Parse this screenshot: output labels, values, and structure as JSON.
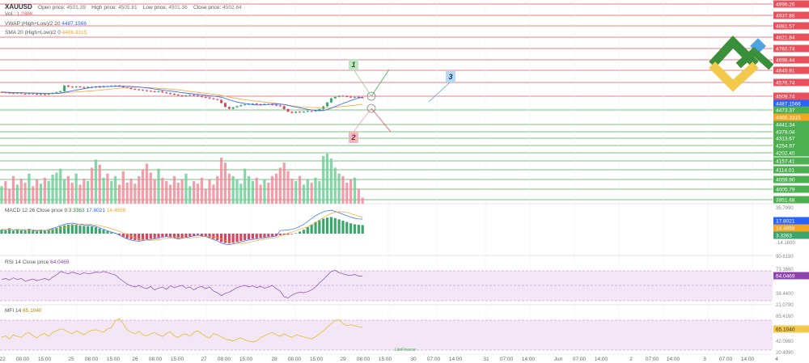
{
  "header": {
    "symbol": "XAUUSD",
    "open_label": "Open price:",
    "open_value": "4501.39",
    "high_label": "High price:",
    "high_value": "4505.81",
    "low_label": "Low price:",
    "low_value": "4501.36",
    "close_label": "Close price:",
    "close_value": "4502.84",
    "vol_label": "Vol.:",
    "vol_value": "1.288K"
  },
  "indicators": {
    "vwap_label": "VWAP (High+Low)/2 20",
    "vwap_value": "4487.1566",
    "sma_label": "SMA 20 (High+Low)/2 0",
    "sma_value": "4466.3315",
    "macd_label": "MACD 12 26 Close price 9",
    "macd_v1": "3.3363",
    "macd_v2": "17.8021",
    "macd_v3": "14.4658",
    "rsi_label": "RSI 14 Close price",
    "rsi_value": "64.0469",
    "mfi_label": "MFI 14",
    "mfi_value": "65.1040"
  },
  "annotations": {
    "label_1": "1",
    "label_2": "2",
    "label_3": "3"
  },
  "watermark": "LiteFinance",
  "colors": {
    "up": "#6fcf97",
    "down": "#f28b9b",
    "resistance": "#e8505b",
    "support": "#4caf50",
    "vwap": "#2962ff",
    "sma": "#f5a623",
    "rsi": "#8e44ad",
    "mfi": "#e6b800",
    "logo_green": "#3a8f3a",
    "logo_yellow": "#f2c94c",
    "logo_blue": "#4fa3e0"
  },
  "chart_data": {
    "type": "candlestick",
    "price_scale_ticks": [
      "4996.26",
      "4937.88",
      "4881.57",
      "4821.84",
      "4760.74",
      "4698.44",
      "4645.91",
      "4576.74",
      "4509.74",
      "4487.1566",
      "4473.37",
      "4466.3315",
      "4441.34",
      "4378.04",
      "4313.67",
      "4254.97",
      "4202.40",
      "4157.41",
      "4114.01",
      "4059.90",
      "4005.79",
      "3951.68"
    ],
    "resistance_levels": [
      4996.26,
      4937.88,
      4881.57,
      4821.84,
      4760.74,
      4698.44,
      4645.91,
      4576.74,
      4509.74
    ],
    "support_levels": [
      4473.37,
      4441.34,
      4378.04,
      4313.67,
      4254.97,
      4202.4,
      4157.41,
      4114.01,
      4059.9,
      4005.79,
      3951.68
    ],
    "current_price": 4502.84,
    "vwap_last": 4487.1566,
    "sma_last": 4466.3315,
    "time_labels": [
      "22",
      "08:00",
      "15:00",
      "25",
      "08:00",
      "15:00",
      "26",
      "08:00",
      "15:00",
      "27",
      "08:00",
      "15:00",
      "28",
      "08:00",
      "15:00",
      "29",
      "08:00",
      "15:00",
      "30",
      "07:00",
      "14:00",
      "31",
      "07:00",
      "14:00",
      "Jun",
      "07:00",
      "14:00",
      "2",
      "07:00",
      "14:00",
      "3",
      "07:00",
      "14:00",
      "4"
    ],
    "macd_scale": [
      "35.7990",
      "17.8021",
      "14.4658",
      "3.3363",
      "-14.1600"
    ],
    "rsi_scale": [
      "90.6190",
      "73.1660",
      "64.0469",
      "38.4400",
      "21.0790"
    ],
    "mfi_scale": [
      "85.4160",
      "65.1040",
      "42.0980",
      "20.4990"
    ],
    "closes": [
      4530,
      4528,
      4526,
      4524,
      4527,
      4523,
      4520,
      4525,
      4522,
      4519,
      4521,
      4518,
      4522,
      4527,
      4531,
      4536,
      4566,
      4560,
      4557,
      4561,
      4558,
      4555,
      4559,
      4556,
      4560,
      4557,
      4563,
      4561,
      4565,
      4566,
      4562,
      4557,
      4553,
      4548,
      4546,
      4543,
      4541,
      4538,
      4536,
      4533,
      4536,
      4530,
      4526,
      4522,
      4518,
      4514,
      4510,
      4514,
      4517,
      4514,
      4510,
      4506,
      4503,
      4498,
      4494,
      4490,
      4473,
      4452,
      4442,
      4450,
      4456,
      4462,
      4466,
      4468,
      4470,
      4467,
      4465,
      4468,
      4466,
      4463,
      4460,
      4456,
      4440,
      4426,
      4420,
      4426,
      4424,
      4426,
      4430,
      4428,
      4432,
      4440,
      4455,
      4476,
      4498,
      4506,
      4512,
      4510,
      4507,
      4504,
      4506,
      4503,
      4502.84
    ],
    "volumes": [
      35,
      45,
      30,
      55,
      38,
      50,
      42,
      60,
      35,
      48,
      40,
      52,
      45,
      58,
      62,
      70,
      48,
      55,
      42,
      60,
      38,
      50,
      45,
      72,
      88,
      78,
      52,
      60,
      45,
      55,
      38,
      65,
      42,
      50,
      40,
      55,
      68,
      80,
      62,
      48,
      70,
      52,
      45,
      38,
      55,
      42,
      48,
      60,
      35,
      45,
      40,
      52,
      30,
      48,
      38,
      55,
      92,
      82,
      60,
      55,
      48,
      40,
      70,
      55,
      45,
      52,
      38,
      48,
      42,
      55,
      60,
      72,
      82,
      65,
      50,
      45,
      55,
      38,
      48,
      42,
      52,
      45,
      95,
      100,
      90,
      72,
      60,
      55,
      42,
      48,
      52,
      30,
      12
    ],
    "macd_hist": [
      1.5,
      1.2,
      1.8,
      1.0,
      1.5,
      1.3,
      1.1,
      1.6,
      1.2,
      0.9,
      1.3,
      1.0,
      1.4,
      1.8,
      2.2,
      2.8,
      3.2,
      3.5,
      3.6,
      3.4,
      3.2,
      3.0,
      2.9,
      2.8,
      2.5,
      2.0,
      1.5,
      1.0,
      0.5,
      0.2,
      -0.5,
      -1.2,
      -1.8,
      -2.2,
      -2.5,
      -2.6,
      -2.4,
      -2.2,
      -2.0,
      -1.8,
      -1.5,
      -1.2,
      -1.0,
      -1.2,
      -1.5,
      -1.8,
      -1.6,
      -1.4,
      -1.0,
      -0.8,
      -0.5,
      -0.8,
      -1.0,
      -1.5,
      -2.0,
      -2.5,
      -3.2,
      -3.6,
      -3.8,
      -3.5,
      -3.2,
      -2.8,
      -2.5,
      -2.2,
      -2.0,
      -1.8,
      -1.6,
      -1.4,
      -1.2,
      -1.0,
      -0.8,
      -0.6,
      -0.5,
      -0.4,
      -0.2,
      0.2,
      0.8,
      1.5,
      2.5,
      3.5,
      4.5,
      5.2,
      5.8,
      6.2,
      6.4,
      6.0,
      5.5,
      5.0,
      4.5,
      4.0,
      3.6,
      3.4,
      3.3
    ],
    "rsi": [
      58,
      60,
      57,
      61,
      58,
      60,
      55,
      57,
      59,
      56,
      58,
      60,
      57,
      62,
      66,
      72,
      70,
      68,
      71,
      69,
      67,
      70,
      68,
      69,
      71,
      70,
      72,
      70,
      68,
      66,
      60,
      55,
      50,
      47,
      45,
      48,
      44,
      42,
      46,
      40,
      43,
      45,
      41,
      47,
      44,
      46,
      48,
      43,
      45,
      40,
      44,
      46,
      42,
      45,
      38,
      35,
      30,
      34,
      36,
      40,
      44,
      46,
      48,
      45,
      47,
      44,
      46,
      43,
      45,
      48,
      42,
      38,
      28,
      26,
      31,
      34,
      36,
      35,
      37,
      40,
      45,
      52,
      58,
      65,
      72,
      74,
      70,
      68,
      66,
      65,
      67,
      64,
      64.05
    ],
    "mfi": [
      45,
      48,
      42,
      50,
      47,
      45,
      52,
      55,
      48,
      44,
      50,
      53,
      47,
      55,
      58,
      62,
      60,
      55,
      52,
      58,
      54,
      50,
      56,
      59,
      60,
      58,
      55,
      62,
      64,
      78,
      82,
      72,
      60,
      55,
      52,
      57,
      50,
      48,
      52,
      55,
      50,
      47,
      53,
      56,
      48,
      45,
      50,
      52,
      47,
      55,
      58,
      52,
      47,
      44,
      52,
      50,
      46,
      42,
      40,
      38,
      42,
      44,
      40,
      38,
      36,
      38,
      44,
      48,
      52,
      55,
      50,
      47,
      52,
      48,
      45,
      50,
      48,
      46,
      44,
      42,
      46,
      52,
      58,
      65,
      72,
      78,
      80,
      72,
      68,
      70,
      68,
      66,
      65.1
    ]
  }
}
